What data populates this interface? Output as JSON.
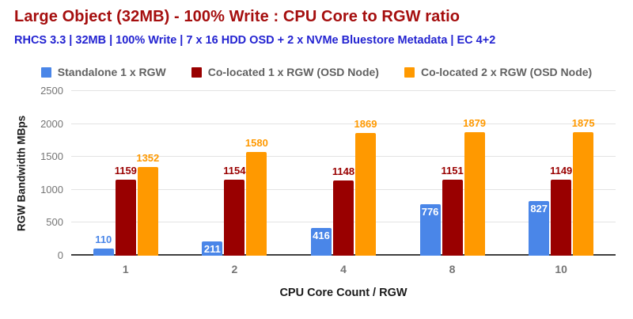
{
  "header": {
    "title": "Large Object (32MB) - 100% Write : CPU Core to RGW ratio",
    "subtitle": "RHCS 3.3 | 32MB | 100% Write | 7 x 16 HDD OSD + 2 x NVMe Bluestore Metadata | EC 4+2",
    "title_color": "#a50e0e",
    "subtitle_color": "#2323d1"
  },
  "chart_data": {
    "type": "bar",
    "title": "Large Object (32MB) - 100% Write : CPU Core to RGW ratio",
    "subtitle": "RHCS 3.3 | 32MB | 100% Write | 7 x 16 HDD OSD + 2 x NVMe Bluestore Metadata | EC 4+2",
    "categories": [
      "1",
      "2",
      "4",
      "8",
      "10"
    ],
    "series": [
      {
        "name": "Standalone 1 x RGW",
        "color": "#4a86e8",
        "values": [
          110,
          211,
          416,
          776,
          827
        ],
        "label_placement": "auto"
      },
      {
        "name": "Co-located 1 x RGW (OSD Node)",
        "color": "#990000",
        "values": [
          1159,
          1154,
          1148,
          1151,
          1149
        ],
        "label_placement": "above"
      },
      {
        "name": "Co-located 2 x RGW (OSD Node)",
        "color": "#ff9900",
        "values": [
          1352,
          1580,
          1869,
          1879,
          1875
        ],
        "label_placement": "above"
      }
    ],
    "xlabel": "CPU Core Count / RGW",
    "ylabel": "RGW Bandwidth MBps",
    "ylim": [
      0,
      2500
    ],
    "yticks": [
      0,
      500,
      1000,
      1500,
      2000,
      2500
    ],
    "grid": true,
    "legend_position": "top",
    "data_labels": true
  }
}
